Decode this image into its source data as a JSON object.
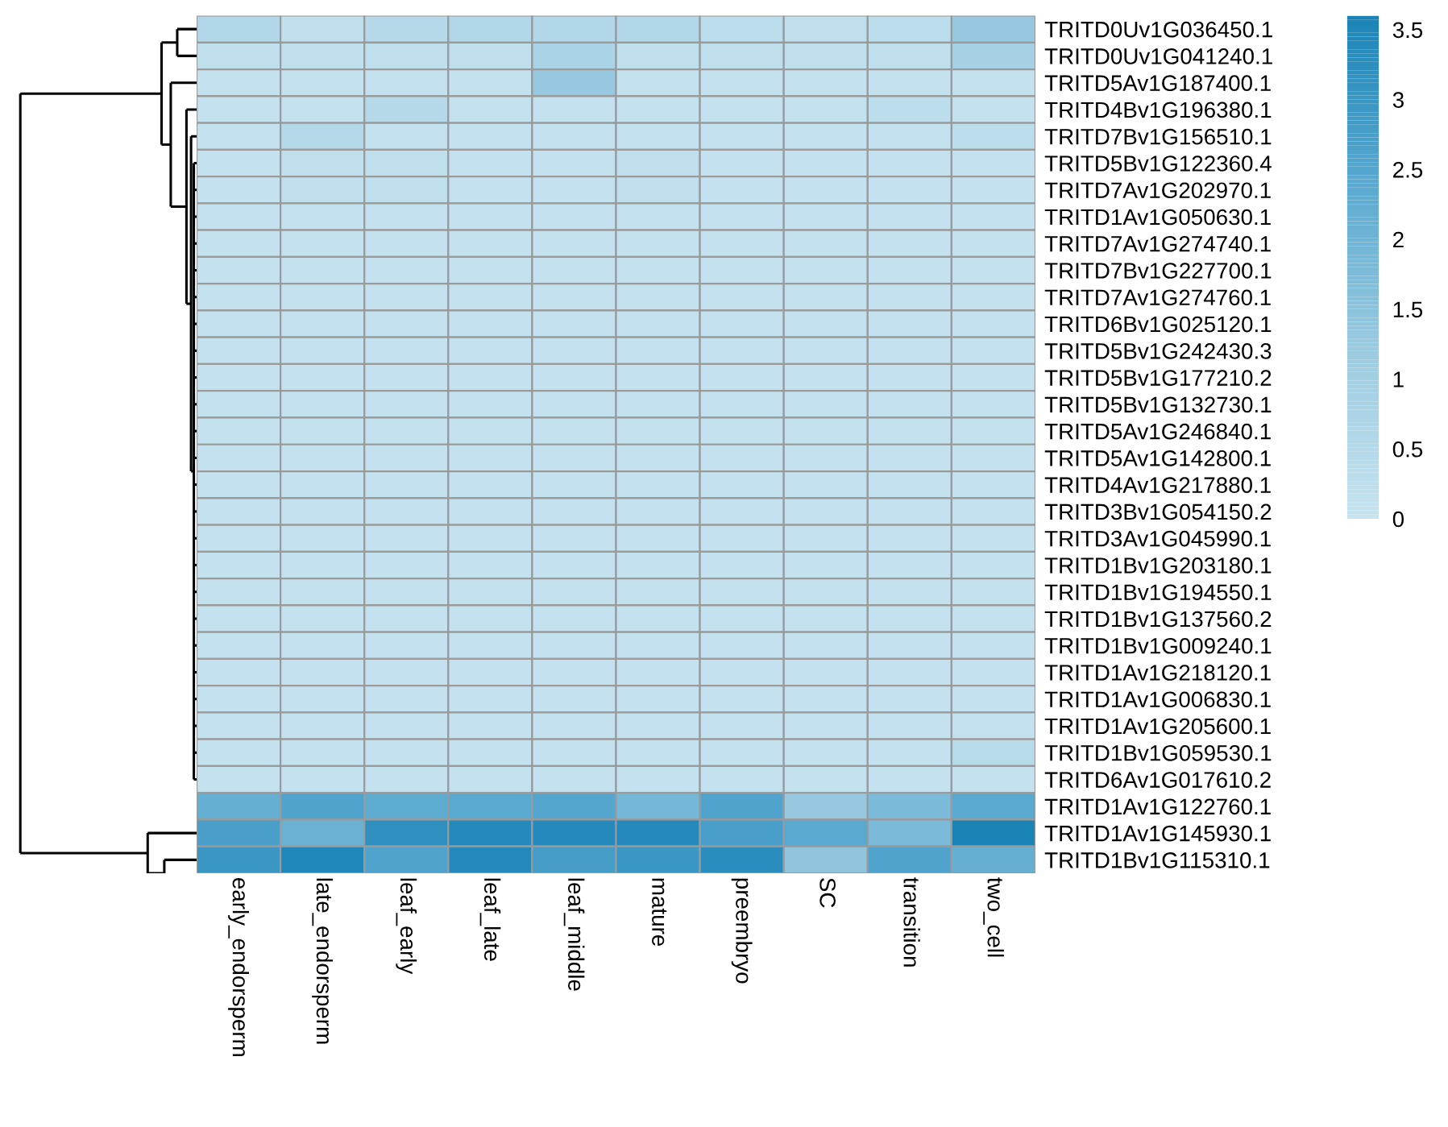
{
  "chart_data": {
    "type": "heatmap",
    "categories": [
      "early_endorsperm",
      "late_endorsperm",
      "leaf_early",
      "leaf_late",
      "leaf_middle",
      "mature",
      "preembryo",
      "SC",
      "transition",
      "two_cell"
    ],
    "y_categories": [
      "TRITD0Uv1G036450.1",
      "TRITD0Uv1G041240.1",
      "TRITD5Av1G187400.1",
      "TRITD4Bv1G196380.1",
      "TRITD7Bv1G156510.1",
      "TRITD5Bv1G122360.4",
      "TRITD7Av1G202970.1",
      "TRITD1Av1G050630.1",
      "TRITD7Av1G274740.1",
      "TRITD7Bv1G227700.1",
      "TRITD7Av1G274760.1",
      "TRITD6Bv1G025120.1",
      "TRITD5Bv1G242430.3",
      "TRITD5Bv1G177210.2",
      "TRITD5Bv1G132730.1",
      "TRITD5Av1G246840.1",
      "TRITD5Av1G142800.1",
      "TRITD4Av1G217880.1",
      "TRITD3Bv1G054150.2",
      "TRITD3Av1G045990.1",
      "TRITD1Bv1G203180.1",
      "TRITD1Bv1G194550.1",
      "TRITD1Bv1G137560.2",
      "TRITD1Bv1G009240.1",
      "TRITD1Av1G218120.1",
      "TRITD1Av1G006830.1",
      "TRITD1Av1G205600.1",
      "TRITD1Bv1G059530.1",
      "TRITD6Av1G017610.2",
      "TRITD1Av1G122760.1",
      "TRITD1Av1G145930.1",
      "TRITD1Bv1G115310.1"
    ],
    "cells": [
      [
        0.6,
        0.2,
        0.5,
        0.6,
        0.6,
        0.6,
        0.3,
        0.2,
        0.3,
        1.3
      ],
      [
        0.2,
        0.2,
        0.2,
        0.2,
        0.8,
        0.2,
        0.2,
        0.2,
        0.2,
        0.9
      ],
      [
        0.1,
        0.1,
        0.1,
        0.1,
        1.3,
        0.1,
        0.1,
        0.1,
        0.1,
        0.1
      ],
      [
        0.1,
        0.1,
        0.5,
        0.1,
        0.1,
        0.1,
        0.1,
        0.1,
        0.3,
        0.1
      ],
      [
        0.1,
        0.5,
        0.1,
        0.1,
        0.1,
        0.1,
        0.1,
        0.1,
        0.1,
        0.3
      ],
      [
        0.1,
        0.2,
        0.2,
        0.1,
        0.1,
        0.2,
        0.1,
        0.1,
        0.1,
        0.1
      ],
      [
        0.1,
        0.2,
        0.2,
        0.1,
        0.1,
        0.2,
        0.1,
        0.1,
        0.1,
        0.1
      ],
      [
        0.1,
        0.1,
        0.1,
        0.1,
        0.1,
        0.1,
        0.1,
        0.1,
        0.1,
        0.1
      ],
      [
        0.1,
        0.1,
        0.1,
        0.1,
        0.1,
        0.1,
        0.1,
        0.1,
        0.1,
        0.1
      ],
      [
        0.1,
        0.1,
        0.1,
        0.1,
        0.1,
        0.1,
        0.1,
        0.1,
        0.1,
        0.1
      ],
      [
        0.1,
        0.1,
        0.1,
        0.1,
        0.1,
        0.1,
        0.1,
        0.1,
        0.1,
        0.1
      ],
      [
        0.1,
        0.1,
        0.1,
        0.1,
        0.1,
        0.1,
        0.1,
        0.1,
        0.1,
        0.1
      ],
      [
        0.1,
        0.1,
        0.1,
        0.1,
        0.1,
        0.1,
        0.1,
        0.1,
        0.1,
        0.1
      ],
      [
        0.1,
        0.1,
        0.1,
        0.1,
        0.1,
        0.1,
        0.1,
        0.1,
        0.1,
        0.1
      ],
      [
        0.1,
        0.1,
        0.1,
        0.1,
        0.1,
        0.1,
        0.1,
        0.1,
        0.1,
        0.1
      ],
      [
        0.1,
        0.1,
        0.1,
        0.1,
        0.1,
        0.1,
        0.1,
        0.1,
        0.1,
        0.1
      ],
      [
        0.1,
        0.1,
        0.1,
        0.1,
        0.1,
        0.1,
        0.1,
        0.1,
        0.1,
        0.1
      ],
      [
        0.1,
        0.1,
        0.1,
        0.1,
        0.1,
        0.1,
        0.1,
        0.1,
        0.1,
        0.1
      ],
      [
        0.1,
        0.1,
        0.1,
        0.1,
        0.1,
        0.1,
        0.1,
        0.1,
        0.1,
        0.1
      ],
      [
        0.1,
        0.1,
        0.1,
        0.1,
        0.1,
        0.1,
        0.1,
        0.1,
        0.1,
        0.1
      ],
      [
        0.1,
        0.1,
        0.1,
        0.1,
        0.1,
        0.1,
        0.1,
        0.1,
        0.1,
        0.1
      ],
      [
        0.1,
        0.1,
        0.1,
        0.1,
        0.1,
        0.1,
        0.1,
        0.1,
        0.1,
        0.1
      ],
      [
        0.1,
        0.1,
        0.1,
        0.1,
        0.1,
        0.1,
        0.1,
        0.1,
        0.1,
        0.1
      ],
      [
        0.1,
        0.1,
        0.1,
        0.1,
        0.1,
        0.1,
        0.1,
        0.1,
        0.1,
        0.1
      ],
      [
        0.1,
        0.1,
        0.1,
        0.1,
        0.1,
        0.1,
        0.1,
        0.1,
        0.1,
        0.1
      ],
      [
        0.1,
        0.1,
        0.1,
        0.1,
        0.1,
        0.1,
        0.1,
        0.1,
        0.1,
        0.1
      ],
      [
        0.1,
        0.1,
        0.1,
        0.1,
        0.1,
        0.1,
        0.1,
        0.1,
        0.1,
        0.1
      ],
      [
        0.1,
        0.1,
        0.1,
        0.1,
        0.1,
        0.1,
        0.1,
        0.1,
        0.1,
        0.4
      ],
      [
        0.1,
        0.1,
        0.1,
        0.1,
        0.1,
        0.1,
        0.1,
        0.1,
        0.1,
        0.1
      ],
      [
        2.2,
        2.6,
        2.3,
        2.4,
        2.5,
        1.9,
        2.6,
        1.3,
        1.8,
        2.4
      ],
      [
        2.7,
        2.1,
        3.2,
        3.4,
        3.4,
        3.4,
        2.7,
        2.4,
        1.8,
        3.6
      ],
      [
        3.0,
        3.5,
        2.6,
        3.4,
        2.8,
        3.0,
        3.3,
        1.4,
        2.6,
        2.2
      ]
    ],
    "clim": [
      0,
      3.6
    ],
    "cticks": [
      0,
      0.5,
      1,
      1.5,
      2,
      2.5,
      3,
      3.5
    ]
  }
}
